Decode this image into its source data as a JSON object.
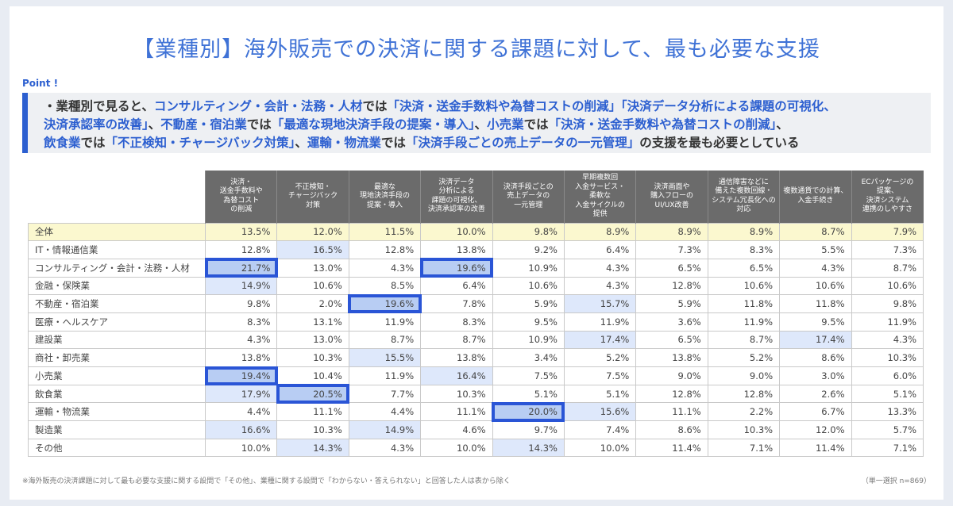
{
  "title": "【業種別】海外販売での決済に関する課題に対して、最も必要な支援",
  "point": {
    "label": "Point !",
    "lines": [
      [
        {
          "text": "・業種別で見ると、",
          "hl": false
        },
        {
          "text": "コンサルティング・会計・法務・人材",
          "hl": true
        },
        {
          "text": "では",
          "hl": false
        },
        {
          "text": "「決済・送金手数料や為替コストの削減」「決済データ分析による課題の可視化、",
          "hl": true
        }
      ],
      [
        {
          "text": "決済承認率の改善」",
          "hl": true
        },
        {
          "text": "、",
          "hl": false
        },
        {
          "text": "不動産・宿泊業",
          "hl": true
        },
        {
          "text": "では",
          "hl": false
        },
        {
          "text": "「最適な現地決済手段の提案・導入」",
          "hl": true
        },
        {
          "text": "、",
          "hl": false
        },
        {
          "text": "小売業",
          "hl": true
        },
        {
          "text": "では",
          "hl": false
        },
        {
          "text": "「決済・送金手数料や為替コストの削減」",
          "hl": true
        },
        {
          "text": "、",
          "hl": false
        }
      ],
      [
        {
          "text": "飲食業",
          "hl": true
        },
        {
          "text": "では",
          "hl": false
        },
        {
          "text": "「不正検知・チャージバック対策」",
          "hl": true
        },
        {
          "text": "、",
          "hl": false
        },
        {
          "text": "運輸・物流業",
          "hl": true
        },
        {
          "text": "では",
          "hl": false
        },
        {
          "text": "「決済手段ごとの売上データの一元管理」",
          "hl": true
        },
        {
          "text": "の支援を最も必要としている",
          "hl": false
        }
      ]
    ]
  },
  "table": {
    "columns": [
      "決済・\n送金手数料や\n為替コスト\nの削減",
      "不正検知・\nチャージバック\n対策",
      "最適な\n現地決済手段の\n提案・導入",
      "決済データ\n分析による\n課題の可視化、\n決済承認率の改善",
      "決済手段ごとの\n売上データの\n一元管理",
      "早期複数回\n入金サービス・\n柔軟な\n入金サイクルの\n提供",
      "決済画面や\n購入フローの\nUI/UX改善",
      "通信障害などに\n備えた複数回線・\nシステム冗長化への\n対応",
      "複数通貨での計算、\n入金手続き",
      "ECパッケージの\n提案、\n決済システム\n連携のしやすさ"
    ],
    "rows": [
      {
        "label": "全体",
        "values": [
          "13.5%",
          "12.0%",
          "11.5%",
          "10.0%",
          "9.8%",
          "8.9%",
          "8.9%",
          "8.9%",
          "8.7%",
          "7.9%"
        ],
        "light": [],
        "boxed": []
      },
      {
        "label": "IT・情報通信業",
        "values": [
          "12.8%",
          "16.5%",
          "12.8%",
          "13.8%",
          "9.2%",
          "6.4%",
          "7.3%",
          "8.3%",
          "5.5%",
          "7.3%"
        ],
        "light": [
          1
        ],
        "boxed": []
      },
      {
        "label": "コンサルティング・会計・法務・人材",
        "values": [
          "21.7%",
          "13.0%",
          "4.3%",
          "19.6%",
          "10.9%",
          "4.3%",
          "6.5%",
          "6.5%",
          "4.3%",
          "8.7%"
        ],
        "light": [],
        "boxed": [
          0,
          3
        ]
      },
      {
        "label": "金融・保険業",
        "values": [
          "14.9%",
          "10.6%",
          "8.5%",
          "6.4%",
          "10.6%",
          "4.3%",
          "12.8%",
          "10.6%",
          "10.6%",
          "10.6%"
        ],
        "light": [
          0
        ],
        "boxed": []
      },
      {
        "label": "不動産・宿泊業",
        "values": [
          "9.8%",
          "2.0%",
          "19.6%",
          "7.8%",
          "5.9%",
          "15.7%",
          "5.9%",
          "11.8%",
          "11.8%",
          "9.8%"
        ],
        "light": [
          5
        ],
        "boxed": [
          2
        ]
      },
      {
        "label": "医療・ヘルスケア",
        "values": [
          "8.3%",
          "13.1%",
          "11.9%",
          "8.3%",
          "9.5%",
          "11.9%",
          "3.6%",
          "11.9%",
          "9.5%",
          "11.9%"
        ],
        "light": [],
        "boxed": []
      },
      {
        "label": "建設業",
        "values": [
          "4.3%",
          "13.0%",
          "8.7%",
          "8.7%",
          "10.9%",
          "17.4%",
          "6.5%",
          "8.7%",
          "17.4%",
          "4.3%"
        ],
        "light": [
          5,
          8
        ],
        "boxed": []
      },
      {
        "label": "商社・卸売業",
        "values": [
          "13.8%",
          "10.3%",
          "15.5%",
          "13.8%",
          "3.4%",
          "5.2%",
          "13.8%",
          "5.2%",
          "8.6%",
          "10.3%"
        ],
        "light": [
          2
        ],
        "boxed": []
      },
      {
        "label": "小売業",
        "values": [
          "19.4%",
          "10.4%",
          "11.9%",
          "16.4%",
          "7.5%",
          "7.5%",
          "9.0%",
          "9.0%",
          "3.0%",
          "6.0%"
        ],
        "light": [
          3
        ],
        "boxed": [
          0
        ]
      },
      {
        "label": "飲食業",
        "values": [
          "17.9%",
          "20.5%",
          "7.7%",
          "10.3%",
          "5.1%",
          "5.1%",
          "12.8%",
          "12.8%",
          "2.6%",
          "5.1%"
        ],
        "light": [
          0
        ],
        "boxed": [
          1
        ]
      },
      {
        "label": "運輸・物流業",
        "values": [
          "4.4%",
          "11.1%",
          "4.4%",
          "11.1%",
          "20.0%",
          "15.6%",
          "11.1%",
          "2.2%",
          "6.7%",
          "13.3%"
        ],
        "light": [
          5
        ],
        "boxed": [
          4
        ]
      },
      {
        "label": "製造業",
        "values": [
          "16.6%",
          "10.3%",
          "14.9%",
          "4.6%",
          "9.7%",
          "7.4%",
          "8.6%",
          "10.3%",
          "12.0%",
          "5.7%"
        ],
        "light": [
          0,
          2
        ],
        "boxed": []
      },
      {
        "label": "その他",
        "values": [
          "10.0%",
          "14.3%",
          "4.3%",
          "10.0%",
          "14.3%",
          "10.0%",
          "11.4%",
          "7.1%",
          "11.4%",
          "7.1%"
        ],
        "light": [
          1,
          4
        ],
        "boxed": []
      }
    ]
  },
  "footnote": "※海外販売の決済課題に対して最も必要な支援に関する設問で「その他」、業種に関する設問で「わからない・答えられない」と回答した人は表から除く",
  "sample": "（単一選択 n=869）",
  "colors": {
    "accent": "#2c5fd0",
    "header_bg": "#6b6b6b",
    "total_row": "#fbf8cf",
    "light_cell": "#dee8fb",
    "boxed_cell": "#b8cdf3",
    "box_border": "#2a55d6"
  }
}
